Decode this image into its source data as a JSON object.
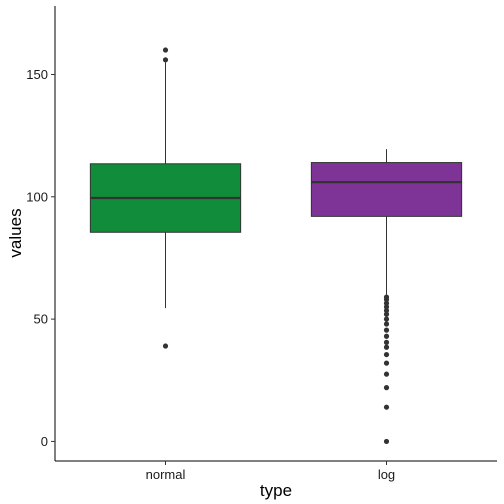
{
  "chart_data": {
    "type": "box",
    "xlabel": "type",
    "ylabel": "values",
    "ylim": [
      -8,
      178
    ],
    "y_ticks": [
      0,
      50,
      100,
      150
    ],
    "categories": [
      "normal",
      "log"
    ],
    "grid": false,
    "legend": "none",
    "boxes": [
      {
        "category": "normal",
        "color": "#118C3A",
        "whisker_low": 54.5,
        "q1": 85.5,
        "median": 99.5,
        "q3": 113.5,
        "whisker_high": 155,
        "outliers": [
          39,
          156,
          160
        ]
      },
      {
        "category": "log",
        "color": "#7E3496",
        "whisker_low": 60,
        "q1": 92,
        "median": 106,
        "q3": 114,
        "whisker_high": 119.5,
        "outliers": [
          59,
          58,
          56.5,
          55,
          53.5,
          52,
          50,
          48,
          45.5,
          43,
          40.5,
          38.5,
          35.5,
          32,
          27.5,
          22,
          14,
          0
        ]
      }
    ]
  }
}
